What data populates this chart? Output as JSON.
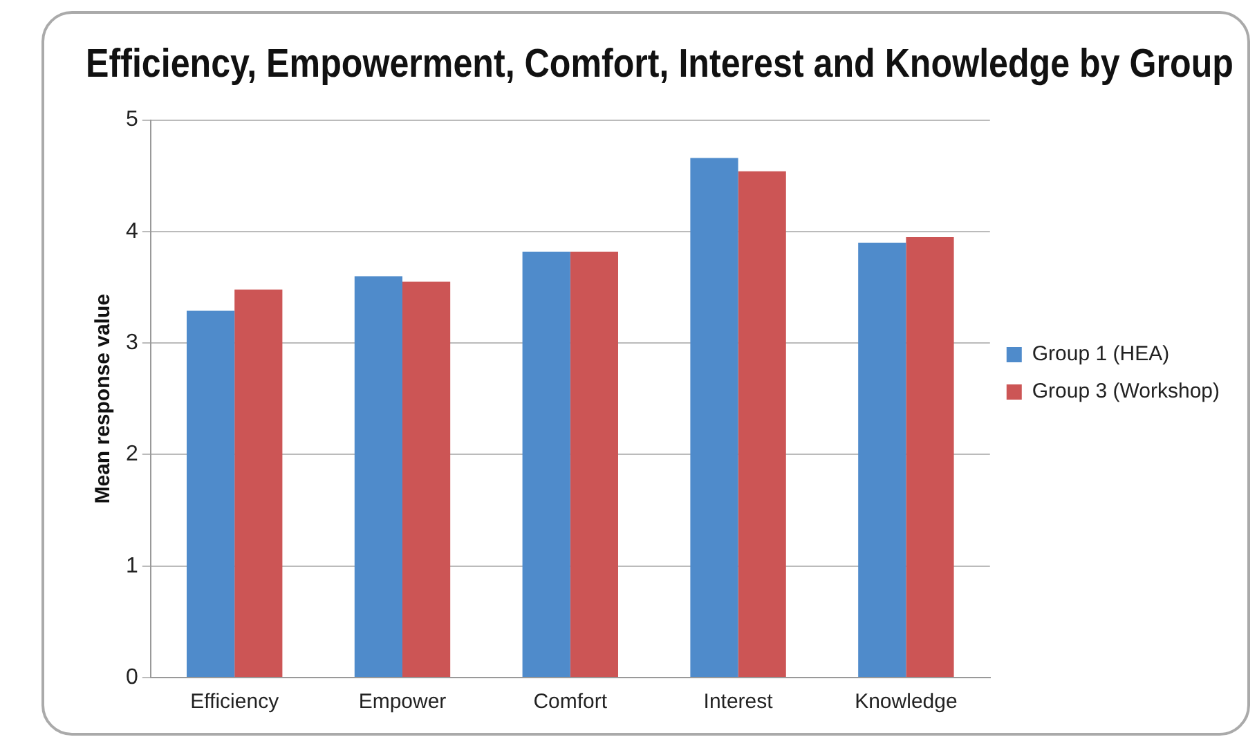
{
  "chart_data": {
    "type": "bar",
    "title": "Efficiency, Empowerment, Comfort, Interest and Knowledge by Group",
    "ylabel": "Mean response value",
    "categories": [
      "Efficiency",
      "Empower",
      "Comfort",
      "Interest",
      "Knowledge"
    ],
    "series": [
      {
        "name": "Group 1 (HEA)",
        "color": "#4f8bcb",
        "values": [
          3.29,
          3.6,
          3.82,
          4.66,
          3.9
        ]
      },
      {
        "name": "Group 3 (Workshop)",
        "color": "#cc5555",
        "values": [
          3.48,
          3.55,
          3.82,
          4.54,
          3.95
        ]
      }
    ],
    "ylim": [
      0,
      5
    ],
    "yticks": [
      0,
      1,
      2,
      3,
      4,
      5
    ],
    "grid": "y",
    "legend": "right"
  }
}
